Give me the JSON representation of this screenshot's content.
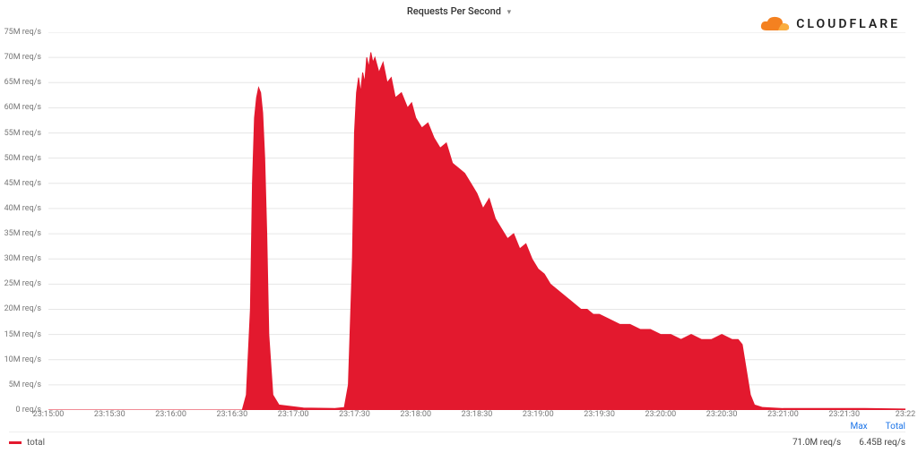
{
  "chart": {
    "type": "area",
    "title": "Requests Per Second",
    "logo_text": "CLOUDFLARE",
    "series_color": "#e3192e",
    "series_fill": "#e3192e",
    "background_color": "#ffffff",
    "grid_color": "#e6e6e6",
    "title_fontsize": 11,
    "label_fontsize": 9,
    "y": {
      "min": 0,
      "max": 75,
      "unit": "M req/s",
      "step": 5,
      "ticks": [
        {
          "v": 0,
          "label": "0 req/s"
        },
        {
          "v": 5,
          "label": "5M req/s"
        },
        {
          "v": 10,
          "label": "10M req/s"
        },
        {
          "v": 15,
          "label": "15M req/s"
        },
        {
          "v": 20,
          "label": "20M req/s"
        },
        {
          "v": 25,
          "label": "25M req/s"
        },
        {
          "v": 30,
          "label": "30M req/s"
        },
        {
          "v": 35,
          "label": "35M req/s"
        },
        {
          "v": 40,
          "label": "40M req/s"
        },
        {
          "v": 45,
          "label": "45M req/s"
        },
        {
          "v": 50,
          "label": "50M req/s"
        },
        {
          "v": 55,
          "label": "55M req/s"
        },
        {
          "v": 60,
          "label": "60M req/s"
        },
        {
          "v": 65,
          "label": "65M req/s"
        },
        {
          "v": 70,
          "label": "70M req/s"
        },
        {
          "v": 75,
          "label": "75M req/s"
        }
      ]
    },
    "x": {
      "min": 0,
      "max": 420,
      "ticks": [
        {
          "v": 0,
          "label": "23:15:00"
        },
        {
          "v": 30,
          "label": "23:15:30"
        },
        {
          "v": 60,
          "label": "23:16:00"
        },
        {
          "v": 90,
          "label": "23:16:30"
        },
        {
          "v": 120,
          "label": "23:17:00"
        },
        {
          "v": 150,
          "label": "23:17:30"
        },
        {
          "v": 180,
          "label": "23:18:00"
        },
        {
          "v": 210,
          "label": "23:18:30"
        },
        {
          "v": 240,
          "label": "23:19:00"
        },
        {
          "v": 270,
          "label": "23:19:30"
        },
        {
          "v": 300,
          "label": "23:20:00"
        },
        {
          "v": 330,
          "label": "23:20:30"
        },
        {
          "v": 360,
          "label": "23:21:00"
        },
        {
          "v": 390,
          "label": "23:21:30"
        },
        {
          "v": 420,
          "label": "23:22"
        }
      ]
    },
    "series": {
      "name": "total",
      "data": [
        {
          "x": 0,
          "y": 0
        },
        {
          "x": 95,
          "y": 0
        },
        {
          "x": 97,
          "y": 3
        },
        {
          "x": 99,
          "y": 20
        },
        {
          "x": 100,
          "y": 45
        },
        {
          "x": 101,
          "y": 58
        },
        {
          "x": 102,
          "y": 62
        },
        {
          "x": 103,
          "y": 64
        },
        {
          "x": 104,
          "y": 63
        },
        {
          "x": 105,
          "y": 59
        },
        {
          "x": 106,
          "y": 50
        },
        {
          "x": 107,
          "y": 35
        },
        {
          "x": 108,
          "y": 15
        },
        {
          "x": 110,
          "y": 3
        },
        {
          "x": 113,
          "y": 1
        },
        {
          "x": 125,
          "y": 0.4
        },
        {
          "x": 140,
          "y": 0.3
        },
        {
          "x": 145,
          "y": 0.5
        },
        {
          "x": 147,
          "y": 5
        },
        {
          "x": 149,
          "y": 30
        },
        {
          "x": 150,
          "y": 55
        },
        {
          "x": 151,
          "y": 63
        },
        {
          "x": 152,
          "y": 66
        },
        {
          "x": 153,
          "y": 63
        },
        {
          "x": 154,
          "y": 67
        },
        {
          "x": 155,
          "y": 65
        },
        {
          "x": 156,
          "y": 70
        },
        {
          "x": 157,
          "y": 68
        },
        {
          "x": 158,
          "y": 71
        },
        {
          "x": 159,
          "y": 69
        },
        {
          "x": 160,
          "y": 70
        },
        {
          "x": 162,
          "y": 67
        },
        {
          "x": 164,
          "y": 69
        },
        {
          "x": 166,
          "y": 65
        },
        {
          "x": 168,
          "y": 66
        },
        {
          "x": 170,
          "y": 62
        },
        {
          "x": 173,
          "y": 63
        },
        {
          "x": 176,
          "y": 60
        },
        {
          "x": 178,
          "y": 61
        },
        {
          "x": 180,
          "y": 58
        },
        {
          "x": 183,
          "y": 56
        },
        {
          "x": 186,
          "y": 57
        },
        {
          "x": 189,
          "y": 54
        },
        {
          "x": 192,
          "y": 52
        },
        {
          "x": 195,
          "y": 53
        },
        {
          "x": 198,
          "y": 49
        },
        {
          "x": 201,
          "y": 48
        },
        {
          "x": 204,
          "y": 47
        },
        {
          "x": 207,
          "y": 45
        },
        {
          "x": 210,
          "y": 43
        },
        {
          "x": 213,
          "y": 40
        },
        {
          "x": 216,
          "y": 42
        },
        {
          "x": 219,
          "y": 38
        },
        {
          "x": 222,
          "y": 36
        },
        {
          "x": 225,
          "y": 34
        },
        {
          "x": 228,
          "y": 35
        },
        {
          "x": 231,
          "y": 32
        },
        {
          "x": 234,
          "y": 33
        },
        {
          "x": 237,
          "y": 30
        },
        {
          "x": 240,
          "y": 28
        },
        {
          "x": 243,
          "y": 27
        },
        {
          "x": 246,
          "y": 25
        },
        {
          "x": 249,
          "y": 24
        },
        {
          "x": 252,
          "y": 23
        },
        {
          "x": 255,
          "y": 22
        },
        {
          "x": 258,
          "y": 21
        },
        {
          "x": 261,
          "y": 20
        },
        {
          "x": 264,
          "y": 20
        },
        {
          "x": 267,
          "y": 19
        },
        {
          "x": 270,
          "y": 19
        },
        {
          "x": 275,
          "y": 18
        },
        {
          "x": 280,
          "y": 17
        },
        {
          "x": 285,
          "y": 17
        },
        {
          "x": 290,
          "y": 16
        },
        {
          "x": 295,
          "y": 16
        },
        {
          "x": 300,
          "y": 15
        },
        {
          "x": 305,
          "y": 15
        },
        {
          "x": 310,
          "y": 14
        },
        {
          "x": 315,
          "y": 15
        },
        {
          "x": 320,
          "y": 14
        },
        {
          "x": 325,
          "y": 14
        },
        {
          "x": 330,
          "y": 15
        },
        {
          "x": 335,
          "y": 14
        },
        {
          "x": 338,
          "y": 14
        },
        {
          "x": 340,
          "y": 13
        },
        {
          "x": 342,
          "y": 8
        },
        {
          "x": 344,
          "y": 3
        },
        {
          "x": 346,
          "y": 1
        },
        {
          "x": 350,
          "y": 0.5
        },
        {
          "x": 360,
          "y": 0.3
        },
        {
          "x": 380,
          "y": 0.3
        },
        {
          "x": 400,
          "y": 0.3
        },
        {
          "x": 420,
          "y": 0.2
        }
      ]
    },
    "legend": {
      "headers": {
        "max": "Max",
        "total": "Total"
      },
      "max_value": "71.0M req/s",
      "total_value": "6.45B req/s"
    }
  }
}
